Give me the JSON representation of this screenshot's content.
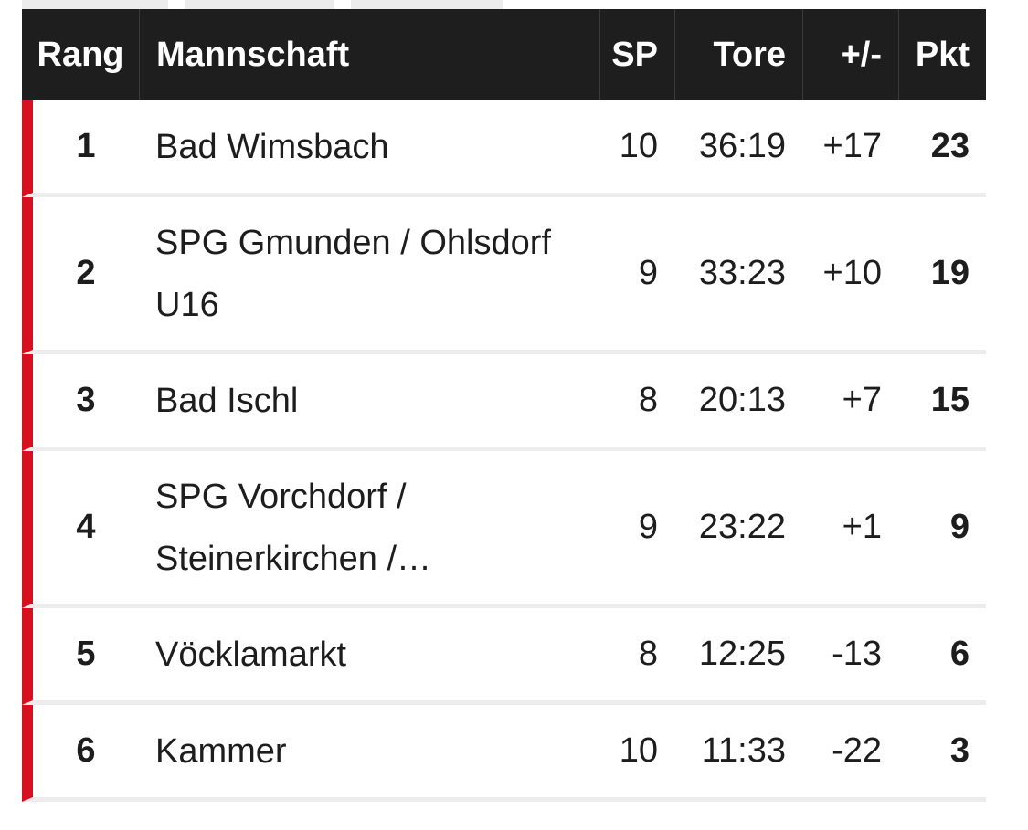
{
  "table": {
    "headers": {
      "rang": "Rang",
      "mannschaft": "Mannschaft",
      "sp": "SP",
      "tore": "Tore",
      "diff": "+/-",
      "pkt": "Pkt"
    },
    "rows": [
      {
        "rang": "1",
        "team": "Bad Wimsbach",
        "sp": "10",
        "tore": "36:19",
        "diff": "+17",
        "pkt": "23"
      },
      {
        "rang": "2",
        "team": "SPG Gmunden / Ohlsdorf U16",
        "sp": "9",
        "tore": "33:23",
        "diff": "+10",
        "pkt": "19"
      },
      {
        "rang": "3",
        "team": "Bad Ischl",
        "sp": "8",
        "tore": "20:13",
        "diff": "+7",
        "pkt": "15"
      },
      {
        "rang": "4",
        "team": "SPG Vorchdorf / Steinerkirchen /…",
        "sp": "9",
        "tore": "23:22",
        "diff": "+1",
        "pkt": "9"
      },
      {
        "rang": "5",
        "team": "Vöcklamarkt",
        "sp": "8",
        "tore": "12:25",
        "diff": "-13",
        "pkt": "6"
      },
      {
        "rang": "6",
        "team": "Kammer",
        "sp": "10",
        "tore": "11:33",
        "diff": "-22",
        "pkt": "3"
      }
    ]
  },
  "colors": {
    "header_bg": "#1e1e1e",
    "accent": "#d6101f",
    "row_divider": "#ececec"
  }
}
